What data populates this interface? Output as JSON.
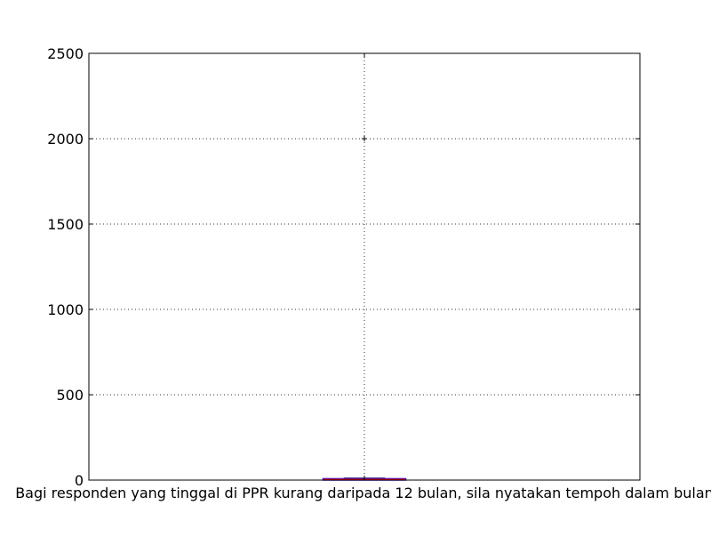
{
  "chart_data": {
    "type": "box",
    "categories": [
      "Bagi responden yang tinggal di PPR kurang daripada 12 bulan, sila nyatakan tempoh dalam bulan"
    ],
    "ylim": [
      0,
      2500
    ],
    "yticks": [
      0,
      500,
      1000,
      1500,
      2000,
      2500
    ],
    "grid": true,
    "boxes": [
      {
        "category": "Bagi responden yang tinggal di PPR kurang daripada 12 bulan, sila nyatakan tempoh dalam bulan",
        "q1": 2,
        "median": 4,
        "q3": 8,
        "whisker_low": 0,
        "whisker_high": 12,
        "outliers": [
          2000
        ]
      }
    ],
    "colors": {
      "box": "#0000ff",
      "median": "#ff0000",
      "outlier": "#000000",
      "grid": "#000000"
    }
  }
}
